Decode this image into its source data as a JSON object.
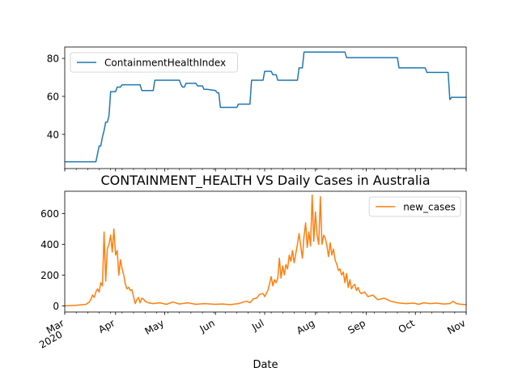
{
  "title": "CONTAINMENT_HEALTH VS Daily Cases in Australia",
  "xlabel": "Date",
  "colors": {
    "series1": "#1f77b4",
    "series2": "#ff7f0e"
  },
  "chart_data": [
    {
      "type": "line",
      "title": "",
      "series": [
        {
          "name": "ContainmentHealthIndex",
          "points": [
            [
              "2020-03-01",
              25.6
            ],
            [
              "2020-03-10",
              25.6
            ],
            [
              "2020-03-20",
              25.6
            ],
            [
              "2020-03-22",
              33.9
            ],
            [
              "2020-03-23",
              33.9
            ],
            [
              "2020-03-24",
              38.7
            ],
            [
              "2020-03-25",
              42.0
            ],
            [
              "2020-03-26",
              46.4
            ],
            [
              "2020-03-27",
              46.4
            ],
            [
              "2020-03-28",
              50.0
            ],
            [
              "2020-03-29",
              62.5
            ],
            [
              "2020-04-01",
              62.5
            ],
            [
              "2020-04-02",
              64.9
            ],
            [
              "2020-04-04",
              64.9
            ],
            [
              "2020-04-05",
              66.1
            ],
            [
              "2020-04-10",
              66.1
            ],
            [
              "2020-04-16",
              66.1
            ],
            [
              "2020-04-17",
              63.1
            ],
            [
              "2020-04-24",
              63.1
            ],
            [
              "2020-04-25",
              68.5
            ],
            [
              "2020-05-10",
              68.5
            ],
            [
              "2020-05-11",
              66.1
            ],
            [
              "2020-05-12",
              64.9
            ],
            [
              "2020-05-13",
              64.9
            ],
            [
              "2020-05-14",
              66.9
            ],
            [
              "2020-05-20",
              66.9
            ],
            [
              "2020-05-21",
              65.5
            ],
            [
              "2020-05-24",
              65.5
            ],
            [
              "2020-05-25",
              63.7
            ],
            [
              "2020-05-27",
              63.7
            ],
            [
              "2020-06-01",
              63.1
            ],
            [
              "2020-06-02",
              61.9
            ],
            [
              "2020-06-03",
              61.9
            ],
            [
              "2020-06-04",
              54.2
            ],
            [
              "2020-06-14",
              54.2
            ],
            [
              "2020-06-15",
              55.9
            ],
            [
              "2020-06-22",
              55.9
            ],
            [
              "2020-06-23",
              68.5
            ],
            [
              "2020-06-30",
              68.5
            ],
            [
              "2020-07-01",
              73.2
            ],
            [
              "2020-07-05",
              73.2
            ],
            [
              "2020-07-06",
              71.4
            ],
            [
              "2020-07-08",
              71.4
            ],
            [
              "2020-07-09",
              68.5
            ],
            [
              "2020-07-21",
              68.5
            ],
            [
              "2020-07-22",
              75.0
            ],
            [
              "2020-07-24",
              75.0
            ],
            [
              "2020-07-25",
              83.3
            ],
            [
              "2020-08-19",
              83.3
            ],
            [
              "2020-08-20",
              80.4
            ],
            [
              "2020-09-20",
              80.4
            ],
            [
              "2020-09-21",
              75.0
            ],
            [
              "2020-10-07",
              75.0
            ],
            [
              "2020-10-08",
              72.6
            ],
            [
              "2020-10-20",
              72.6
            ],
            [
              "2020-10-21",
              72.6
            ],
            [
              "2020-10-22",
              58.3
            ],
            [
              "2020-10-23",
              59.5
            ],
            [
              "2020-11-01",
              59.5
            ]
          ]
        }
      ],
      "ylim": [
        22,
        86
      ],
      "yticks": [
        40,
        60,
        80
      ],
      "legend_position": "upper-left",
      "grid": false
    },
    {
      "type": "line",
      "title": "CONTAINMENT_HEALTH VS Daily Cases in Australia",
      "series": [
        {
          "name": "new_cases",
          "points": [
            [
              "2020-03-01",
              0
            ],
            [
              "2020-03-05",
              2
            ],
            [
              "2020-03-09",
              5
            ],
            [
              "2020-03-12",
              8
            ],
            [
              "2020-03-14",
              10
            ],
            [
              "2020-03-16",
              25
            ],
            [
              "2020-03-17",
              45
            ],
            [
              "2020-03-18",
              70
            ],
            [
              "2020-03-19",
              55
            ],
            [
              "2020-03-20",
              90
            ],
            [
              "2020-03-21",
              110
            ],
            [
              "2020-03-22",
              90
            ],
            [
              "2020-03-23",
              150
            ],
            [
              "2020-03-24",
              130
            ],
            [
              "2020-03-25",
              480
            ],
            [
              "2020-03-26",
              160
            ],
            [
              "2020-03-27",
              370
            ],
            [
              "2020-03-28",
              400
            ],
            [
              "2020-03-29",
              460
            ],
            [
              "2020-03-30",
              350
            ],
            [
              "2020-03-31",
              500
            ],
            [
              "2020-04-01",
              330
            ],
            [
              "2020-04-02",
              360
            ],
            [
              "2020-04-03",
              200
            ],
            [
              "2020-04-04",
              300
            ],
            [
              "2020-04-05",
              240
            ],
            [
              "2020-04-06",
              200
            ],
            [
              "2020-04-07",
              140
            ],
            [
              "2020-04-08",
              110
            ],
            [
              "2020-04-09",
              120
            ],
            [
              "2020-04-10",
              100
            ],
            [
              "2020-04-11",
              105
            ],
            [
              "2020-04-12",
              60
            ],
            [
              "2020-04-13",
              15
            ],
            [
              "2020-04-14",
              40
            ],
            [
              "2020-04-15",
              55
            ],
            [
              "2020-04-16",
              20
            ],
            [
              "2020-04-17",
              50
            ],
            [
              "2020-04-18",
              45
            ],
            [
              "2020-04-19",
              30
            ],
            [
              "2020-04-21",
              20
            ],
            [
              "2020-04-24",
              15
            ],
            [
              "2020-04-28",
              20
            ],
            [
              "2020-05-02",
              10
            ],
            [
              "2020-05-06",
              25
            ],
            [
              "2020-05-10",
              12
            ],
            [
              "2020-05-15",
              20
            ],
            [
              "2020-05-20",
              10
            ],
            [
              "2020-05-25",
              15
            ],
            [
              "2020-06-01",
              10
            ],
            [
              "2020-06-05",
              12
            ],
            [
              "2020-06-10",
              8
            ],
            [
              "2020-06-15",
              15
            ],
            [
              "2020-06-18",
              25
            ],
            [
              "2020-06-20",
              30
            ],
            [
              "2020-06-22",
              20
            ],
            [
              "2020-06-24",
              45
            ],
            [
              "2020-06-26",
              50
            ],
            [
              "2020-06-28",
              75
            ],
            [
              "2020-06-30",
              80
            ],
            [
              "2020-07-01",
              60
            ],
            [
              "2020-07-03",
              100
            ],
            [
              "2020-07-05",
              190
            ],
            [
              "2020-07-06",
              130
            ],
            [
              "2020-07-07",
              170
            ],
            [
              "2020-07-08",
              150
            ],
            [
              "2020-07-09",
              180
            ],
            [
              "2020-07-10",
              310
            ],
            [
              "2020-07-11",
              180
            ],
            [
              "2020-07-12",
              260
            ],
            [
              "2020-07-13",
              200
            ],
            [
              "2020-07-14",
              270
            ],
            [
              "2020-07-15",
              240
            ],
            [
              "2020-07-16",
              330
            ],
            [
              "2020-07-17",
              290
            ],
            [
              "2020-07-18",
              360
            ],
            [
              "2020-07-19",
              280
            ],
            [
              "2020-07-20",
              340
            ],
            [
              "2020-07-21",
              400
            ],
            [
              "2020-07-22",
              470
            ],
            [
              "2020-07-23",
              390
            ],
            [
              "2020-07-24",
              310
            ],
            [
              "2020-07-25",
              450
            ],
            [
              "2020-07-26",
              540
            ],
            [
              "2020-07-27",
              380
            ],
            [
              "2020-07-28",
              480
            ],
            [
              "2020-07-29",
              390
            ],
            [
              "2020-07-30",
              720
            ],
            [
              "2020-07-31",
              420
            ],
            [
              "2020-08-01",
              610
            ],
            [
              "2020-08-02",
              460
            ],
            [
              "2020-08-03",
              400
            ],
            [
              "2020-08-04",
              710
            ],
            [
              "2020-08-05",
              400
            ],
            [
              "2020-08-06",
              460
            ],
            [
              "2020-08-07",
              440
            ],
            [
              "2020-08-08",
              390
            ],
            [
              "2020-08-09",
              320
            ],
            [
              "2020-08-10",
              410
            ],
            [
              "2020-08-11",
              330
            ],
            [
              "2020-08-12",
              370
            ],
            [
              "2020-08-13",
              300
            ],
            [
              "2020-08-14",
              270
            ],
            [
              "2020-08-15",
              230
            ],
            [
              "2020-08-16",
              240
            ],
            [
              "2020-08-17",
              200
            ],
            [
              "2020-08-18",
              220
            ],
            [
              "2020-08-19",
              150
            ],
            [
              "2020-08-20",
              210
            ],
            [
              "2020-08-21",
              120
            ],
            [
              "2020-08-22",
              170
            ],
            [
              "2020-08-23",
              110
            ],
            [
              "2020-08-24",
              130
            ],
            [
              "2020-08-25",
              140
            ],
            [
              "2020-08-26",
              100
            ],
            [
              "2020-08-27",
              120
            ],
            [
              "2020-08-28",
              90
            ],
            [
              "2020-08-29",
              80
            ],
            [
              "2020-08-31",
              90
            ],
            [
              "2020-09-02",
              60
            ],
            [
              "2020-09-05",
              70
            ],
            [
              "2020-09-08",
              40
            ],
            [
              "2020-09-12",
              50
            ],
            [
              "2020-09-16",
              30
            ],
            [
              "2020-09-20",
              20
            ],
            [
              "2020-09-25",
              15
            ],
            [
              "2020-09-30",
              18
            ],
            [
              "2020-10-03",
              10
            ],
            [
              "2020-10-06",
              20
            ],
            [
              "2020-10-10",
              15
            ],
            [
              "2020-10-14",
              18
            ],
            [
              "2020-10-18",
              12
            ],
            [
              "2020-10-22",
              15
            ],
            [
              "2020-10-24",
              30
            ],
            [
              "2020-10-26",
              15
            ],
            [
              "2020-10-29",
              10
            ],
            [
              "2020-11-01",
              8
            ]
          ]
        }
      ],
      "ylim": [
        -40,
        745
      ],
      "yticks": [
        0,
        200,
        400,
        600
      ],
      "xlim": [
        "2020-03-01",
        "2020-11-01"
      ],
      "xticks": [
        {
          "date": "2020-03-01",
          "label": "Mar",
          "sublabel": "2020"
        },
        {
          "date": "2020-04-01",
          "label": "Apr"
        },
        {
          "date": "2020-05-01",
          "label": "May"
        },
        {
          "date": "2020-06-01",
          "label": "Jun"
        },
        {
          "date": "2020-07-01",
          "label": "Jul"
        },
        {
          "date": "2020-08-01",
          "label": "Aug"
        },
        {
          "date": "2020-09-01",
          "label": "Sep"
        },
        {
          "date": "2020-10-01",
          "label": "Oct"
        },
        {
          "date": "2020-11-01",
          "label": "Nov"
        }
      ],
      "xlabel": "Date",
      "legend_position": "upper-right",
      "grid": false
    }
  ]
}
